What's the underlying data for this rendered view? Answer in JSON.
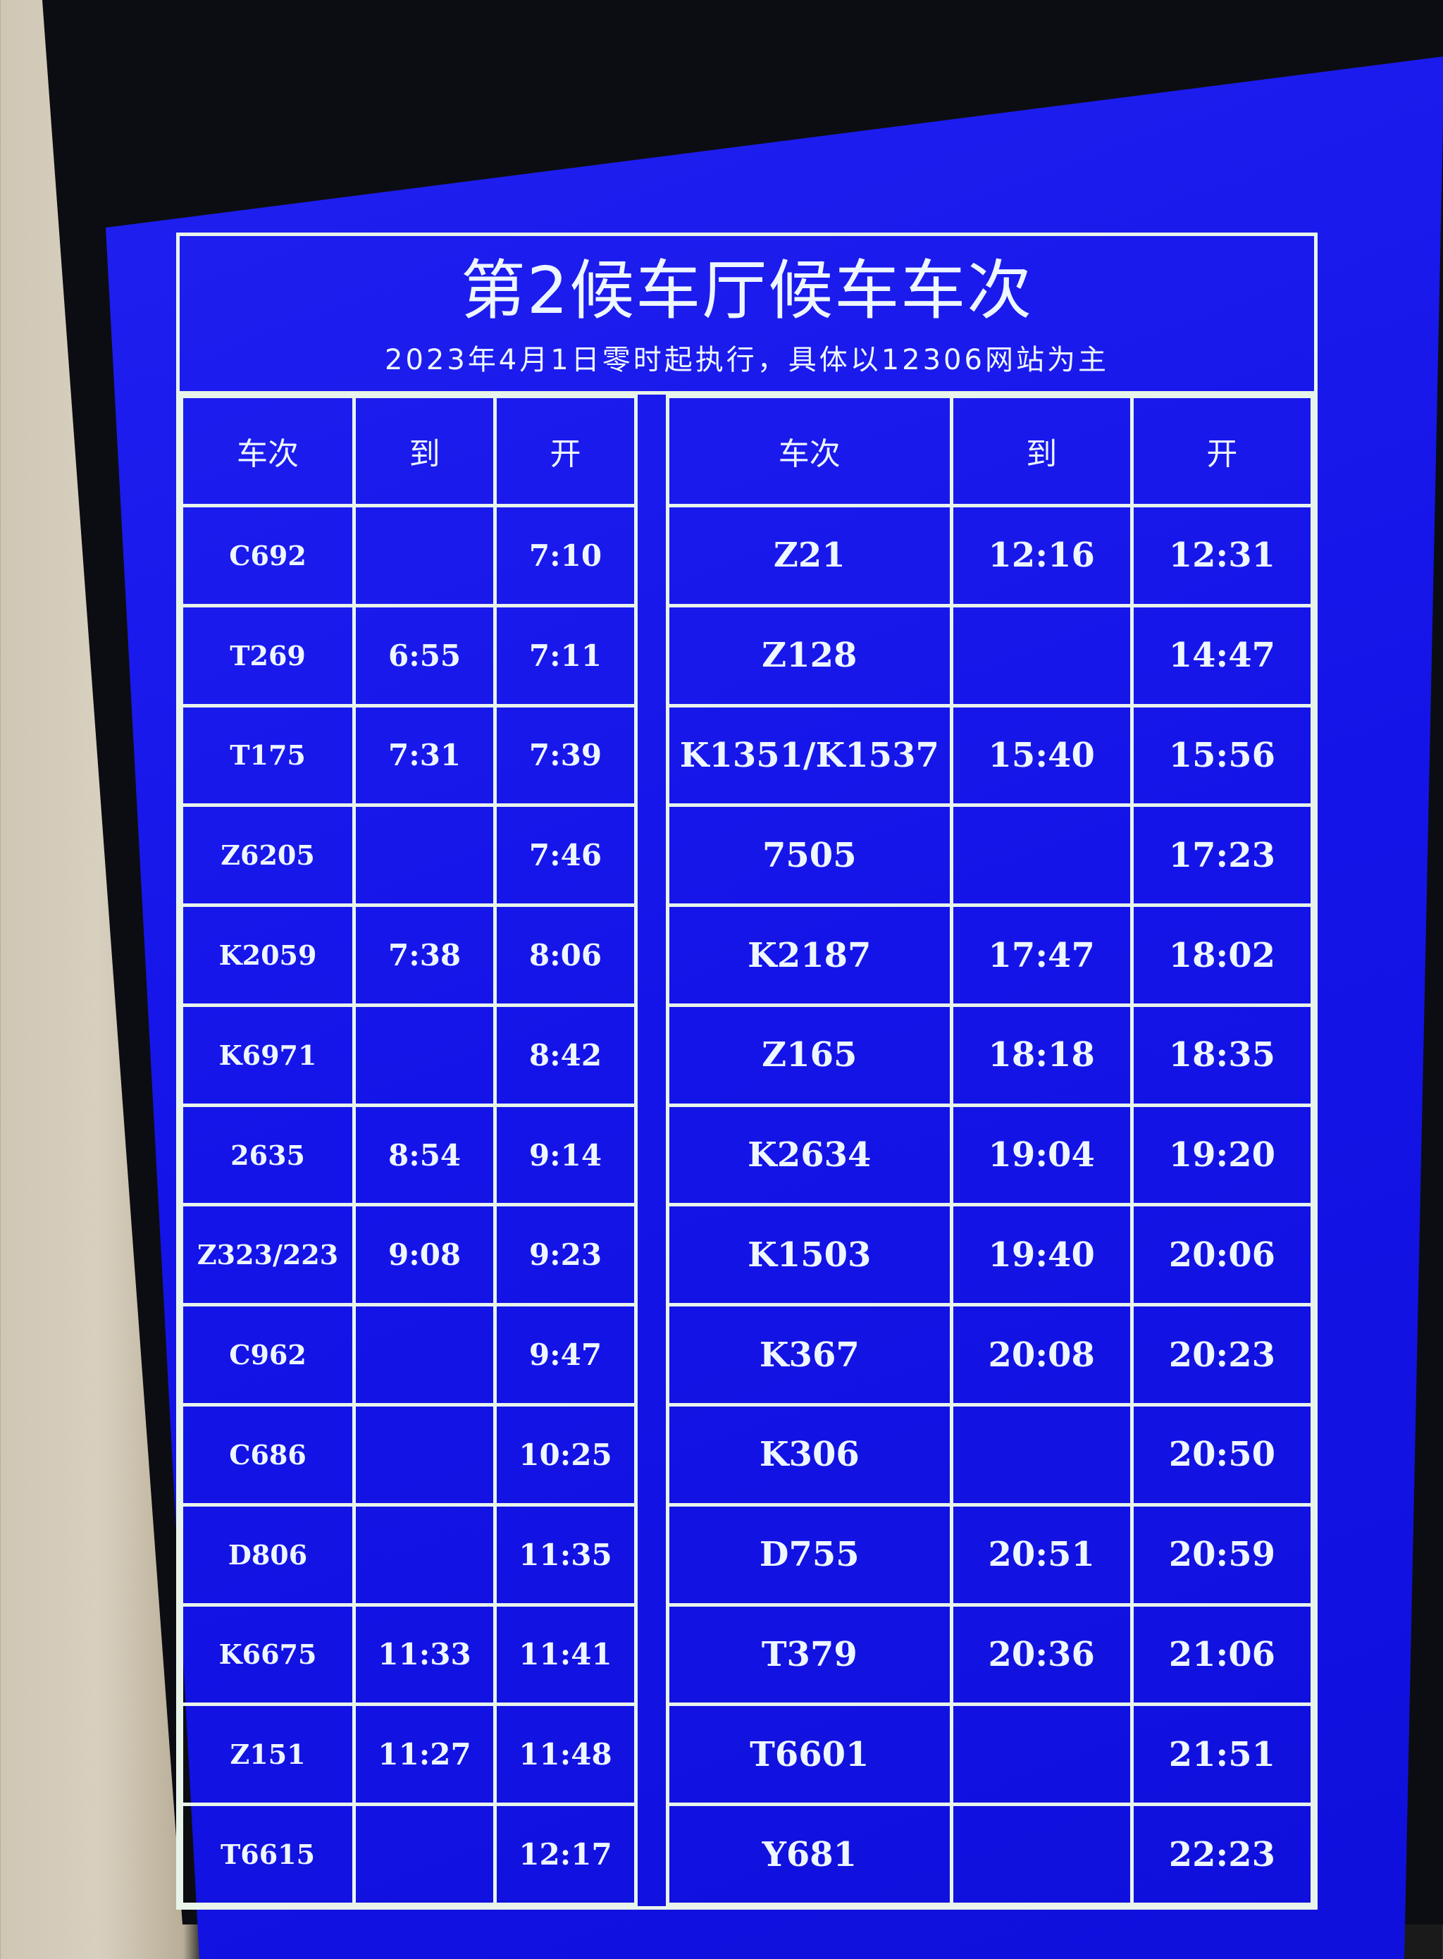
{
  "board": {
    "title": "第2候车厅候车车次",
    "subtitle": "2023年4月1日零时起执行，具体以12306网站为主",
    "headers": {
      "train": "车次",
      "arrive": "到",
      "depart": "开"
    },
    "screen_color": "#1414e8",
    "left_table": [
      {
        "train": "C692",
        "arrive": "",
        "depart": "7:10"
      },
      {
        "train": "T269",
        "arrive": "6:55",
        "depart": "7:11"
      },
      {
        "train": "T175",
        "arrive": "7:31",
        "depart": "7:39"
      },
      {
        "train": "Z6205",
        "arrive": "",
        "depart": "7:46"
      },
      {
        "train": "K2059",
        "arrive": "7:38",
        "depart": "8:06"
      },
      {
        "train": "K6971",
        "arrive": "",
        "depart": "8:42"
      },
      {
        "train": "2635",
        "arrive": "8:54",
        "depart": "9:14"
      },
      {
        "train": "Z323/223",
        "arrive": "9:08",
        "depart": "9:23"
      },
      {
        "train": "C962",
        "arrive": "",
        "depart": "9:47"
      },
      {
        "train": "C686",
        "arrive": "",
        "depart": "10:25"
      },
      {
        "train": "D806",
        "arrive": "",
        "depart": "11:35"
      },
      {
        "train": "K6675",
        "arrive": "11:33",
        "depart": "11:41"
      },
      {
        "train": "Z151",
        "arrive": "11:27",
        "depart": "11:48"
      },
      {
        "train": "T6615",
        "arrive": "",
        "depart": "12:17"
      }
    ],
    "right_table": [
      {
        "train": "Z21",
        "arrive": "12:16",
        "depart": "12:31"
      },
      {
        "train": "Z128",
        "arrive": "",
        "depart": "14:47"
      },
      {
        "train": "K1351/K1537",
        "arrive": "15:40",
        "depart": "15:56"
      },
      {
        "train": "7505",
        "arrive": "",
        "depart": "17:23"
      },
      {
        "train": "K2187",
        "arrive": "17:47",
        "depart": "18:02"
      },
      {
        "train": "Z165",
        "arrive": "18:18",
        "depart": "18:35"
      },
      {
        "train": "K2634",
        "arrive": "19:04",
        "depart": "19:20"
      },
      {
        "train": "K1503",
        "arrive": "19:40",
        "depart": "20:06"
      },
      {
        "train": "K367",
        "arrive": "20:08",
        "depart": "20:23"
      },
      {
        "train": "K306",
        "arrive": "",
        "depart": "20:50"
      },
      {
        "train": "D755",
        "arrive": "20:51",
        "depart": "20:59"
      },
      {
        "train": "T379",
        "arrive": "20:36",
        "depart": "21:06"
      },
      {
        "train": "T6601",
        "arrive": "",
        "depart": "21:51"
      },
      {
        "train": "Y681",
        "arrive": "",
        "depart": "22:23"
      }
    ]
  }
}
